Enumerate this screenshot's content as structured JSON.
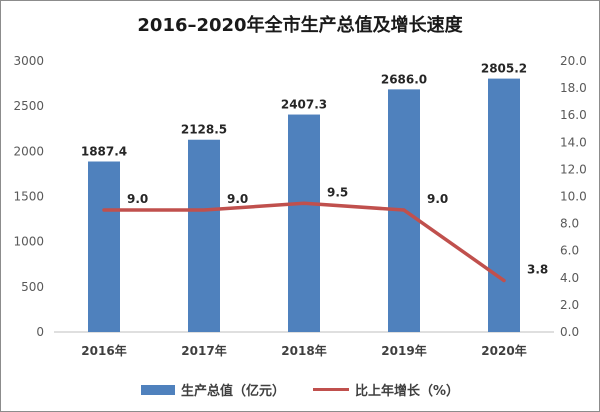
{
  "chart_data": {
    "type": "bar",
    "title": "2016–2020年全市生产总值及增长速度",
    "categories": [
      "2016年",
      "2017年",
      "2018年",
      "2019年",
      "2020年"
    ],
    "series": [
      {
        "name": "生产总值（亿元）",
        "kind": "bar",
        "axis": "left",
        "color": "#4f81bd",
        "values": [
          1887.4,
          2128.5,
          2407.3,
          2686.0,
          2805.2
        ],
        "labels": [
          "1887.4",
          "2128.5",
          "2407.3",
          "2686.0",
          "2805.2"
        ]
      },
      {
        "name": "比上年增长（%）",
        "kind": "line",
        "axis": "right",
        "color": "#c0504d",
        "values": [
          9.0,
          9.0,
          9.5,
          9.0,
          3.8
        ],
        "labels": [
          "9.0",
          "9.0",
          "9.5",
          "9.0",
          "3.8"
        ]
      }
    ],
    "y_left": {
      "lim": [
        0,
        3000
      ],
      "ticks": [
        0,
        500,
        1000,
        1500,
        2000,
        2500,
        3000
      ],
      "tick_labels": [
        "0",
        "500",
        "1000",
        "1500",
        "2000",
        "2500",
        "3000"
      ]
    },
    "y_right": {
      "lim": [
        0,
        20
      ],
      "ticks": [
        0,
        2,
        4,
        6,
        8,
        10,
        12,
        14,
        16,
        18,
        20
      ],
      "tick_labels": [
        "0.0",
        "2.0",
        "4.0",
        "6.0",
        "8.0",
        "10.0",
        "12.0",
        "14.0",
        "16.0",
        "18.0",
        "20.0"
      ]
    },
    "grid": false,
    "legend_position": "bottom"
  }
}
